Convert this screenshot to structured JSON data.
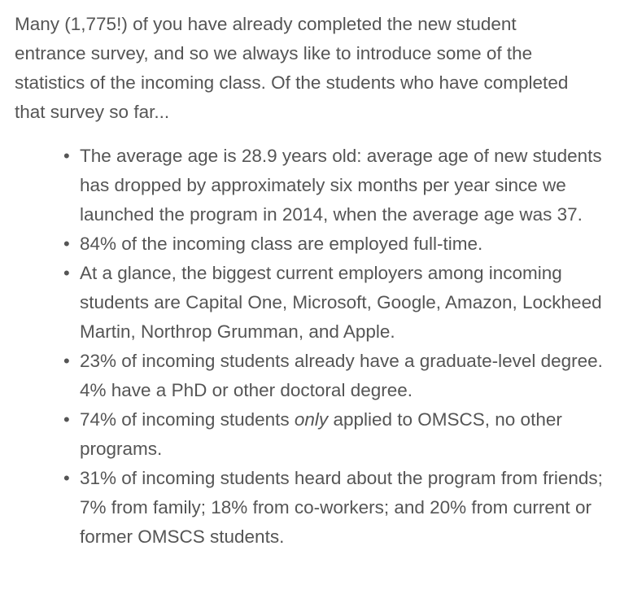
{
  "intro": "Many (1,775!) of you have already completed the new student entrance survey, and so we always like to introduce some of the statistics of the incoming class. Of the students who have completed that survey so far...",
  "bullet_glyph": "•",
  "items": [
    {
      "text": "The average age is 28.9 years old: average age of new students has dropped by approximately six months per year since we launched the program in 2014, when the average age was 37."
    },
    {
      "text": "84% of the incoming class are employed full-time."
    },
    {
      "text": "At a glance, the biggest current employers among incoming students are Capital One, Microsoft, Google, Amazon, Lockheed Martin, Northrop Grumman, and Apple."
    },
    {
      "text": "23% of incoming students already have a graduate-level degree. 4% have a PhD or other doctoral degree."
    },
    {
      "text_before": "74% of incoming students ",
      "emphasis": "only",
      "text_after": " applied to OMSCS, no other programs."
    },
    {
      "text": "31% of incoming students heard about the program from friends; 7% from family; 18% from co-workers; and 20% from current or former OMSCS students."
    }
  ]
}
